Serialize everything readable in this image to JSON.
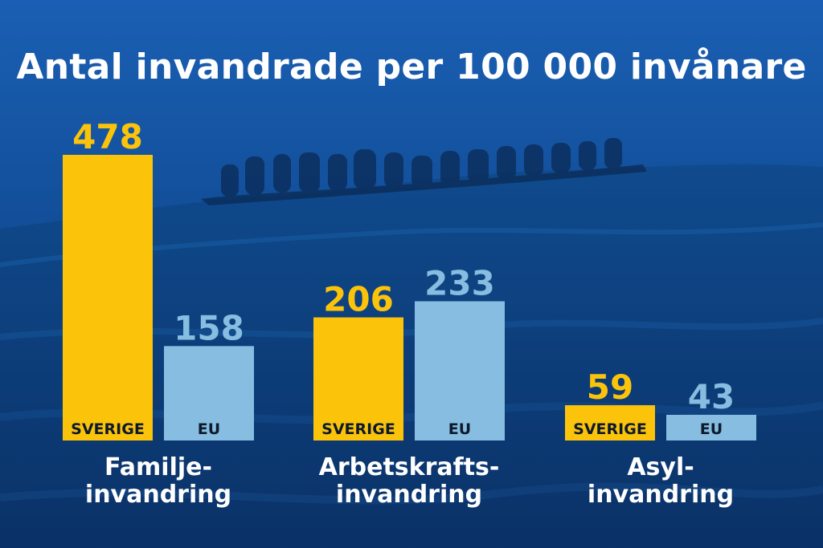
{
  "title": "Antal invandrade per 100 000 invånare",
  "colors": {
    "sverige": "#fcc30b",
    "eu": "#86bde0"
  },
  "chart_data": {
    "type": "bar",
    "title": "Antal invandrade per 100 000 invånare",
    "categories": [
      "Familje-\ninvandring",
      "Arbetskrafts-\ninvandring",
      "Asyl-\ninvandring"
    ],
    "series": [
      {
        "name": "SVERIGE",
        "values": [
          478,
          206,
          59
        ]
      },
      {
        "name": "EU",
        "values": [
          158,
          233,
          43
        ]
      }
    ],
    "ylim": [
      0,
      478
    ],
    "grid": false,
    "legend": "none"
  }
}
